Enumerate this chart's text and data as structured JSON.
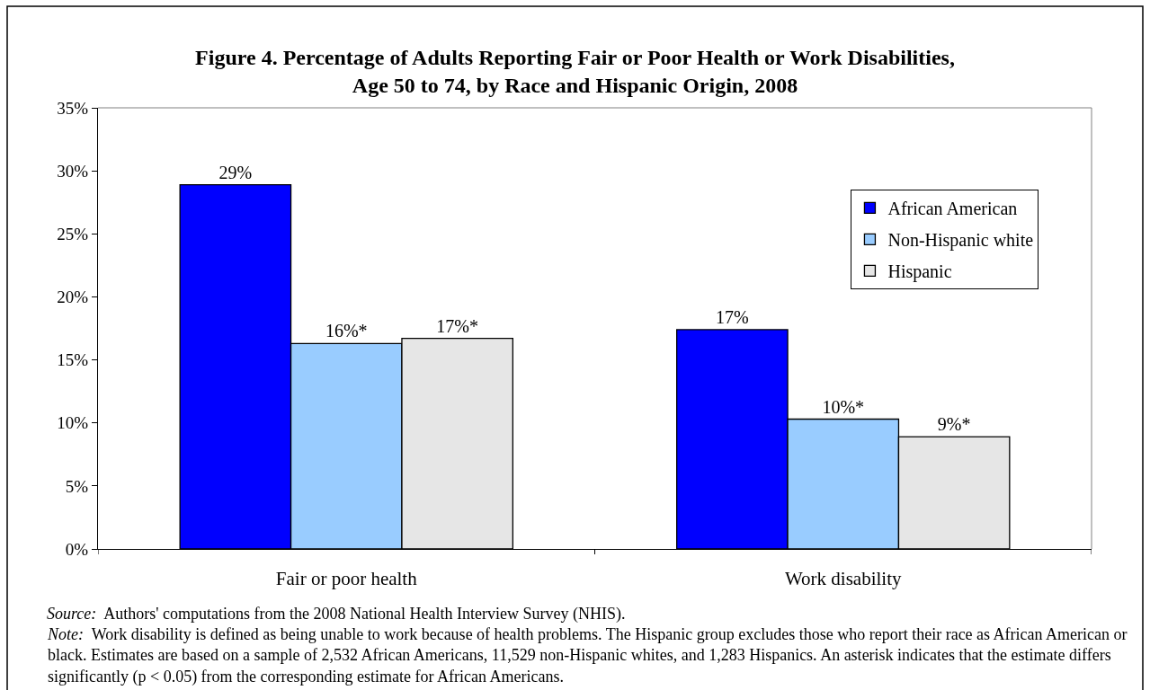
{
  "chart_data": {
    "type": "bar",
    "title": "Figure 4. Percentage of Adults Reporting Fair or Poor Health or Work Disabilities,\nAge 50 to 74, by Race and Hispanic Origin, 2008",
    "categories": [
      "Fair or poor health",
      "Work disability"
    ],
    "series": [
      {
        "name": "African American",
        "color": "#0000ff",
        "values": [
          28.9,
          17.4
        ],
        "value_labels": [
          "29%",
          "17%"
        ]
      },
      {
        "name": "Non-Hispanic white",
        "color": "#99ccff",
        "values": [
          16.3,
          10.3
        ],
        "value_labels": [
          "16%*",
          "10%*"
        ]
      },
      {
        "name": "Hispanic",
        "color": "#e6e6e6",
        "values": [
          16.7,
          8.9
        ],
        "value_labels": [
          "17%*",
          "9%*"
        ]
      }
    ],
    "ylim": [
      0,
      35
    ],
    "yticks": [
      {
        "value": 0,
        "label": "0%"
      },
      {
        "value": 5,
        "label": "5%"
      },
      {
        "value": 10,
        "label": "10%"
      },
      {
        "value": 15,
        "label": "15%"
      },
      {
        "value": 20,
        "label": "20%"
      },
      {
        "value": 25,
        "label": "25%"
      },
      {
        "value": 30,
        "label": "30%"
      },
      {
        "value": 35,
        "label": "35%"
      }
    ],
    "grid": false,
    "legend": "top right",
    "annotations": [
      "Source: Authors' computations from the 2008 National Health Interview Survey (NHIS).",
      "Note: Work disability is defined as being unable to work because of health problems. The Hispanic group excludes those who report their race as African American or black. Estimates are based on a sample of 2,532 African Americans, 11,529 non-Hispanic whites, and 1,283 Hispanics. An asterisk indicates that the estimate differs significantly (p < 0.05) from the corresponding estimate for African Americans."
    ]
  }
}
